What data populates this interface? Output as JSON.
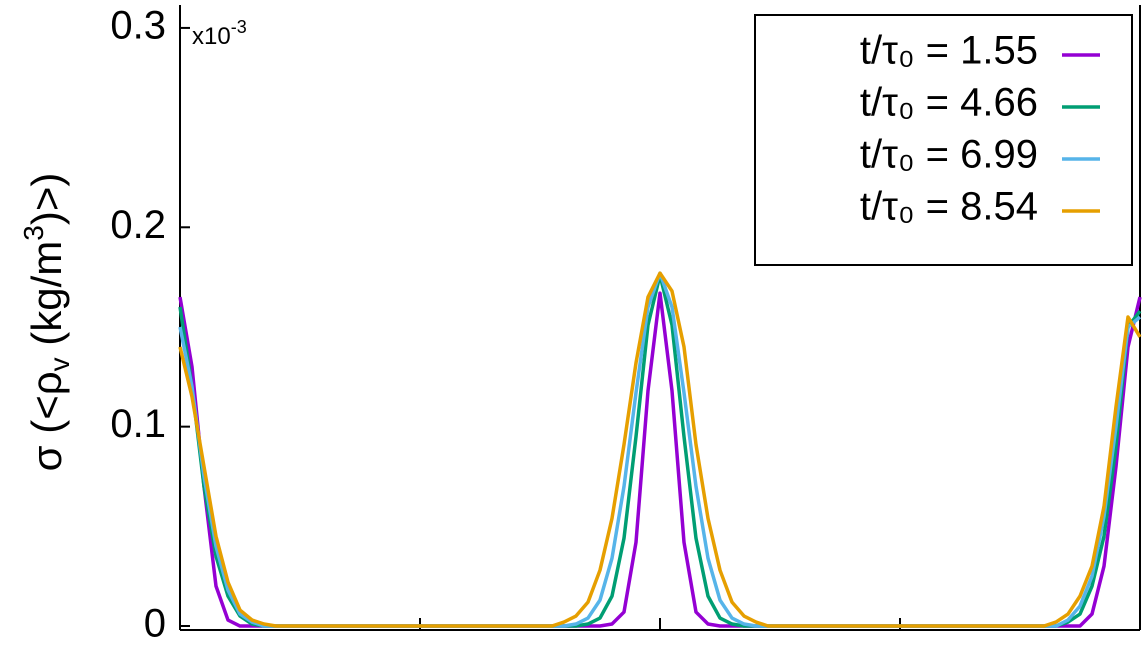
{
  "chart_data": {
    "type": "line",
    "ylabel": [
      "σ (<ρ",
      "v",
      " (kg/m",
      "3",
      ")>)"
    ],
    "multiplier": [
      "x10",
      "-3"
    ],
    "x": [
      0,
      0.05,
      0.1,
      0.15,
      0.2,
      0.25,
      0.3,
      0.35,
      0.4,
      0.45,
      0.5,
      0.55,
      0.6,
      0.65,
      0.7,
      0.75,
      0.8,
      0.85,
      0.9,
      0.95,
      1,
      1.05,
      1.1,
      1.15,
      1.2,
      1.25,
      1.3,
      1.35,
      1.4,
      1.45,
      1.5,
      1.55,
      1.6,
      1.65,
      1.7,
      1.75,
      1.8,
      1.85,
      1.9,
      1.95,
      2,
      2.05,
      2.1,
      2.15,
      2.2,
      2.25,
      2.3,
      2.35,
      2.4,
      2.45,
      2.5,
      2.55,
      2.6,
      2.65,
      2.7,
      2.75,
      2.8,
      2.85,
      2.9,
      2.95,
      3,
      3.05,
      3.1,
      3.15,
      3.2,
      3.25,
      3.3,
      3.35,
      3.4,
      3.45,
      3.5,
      3.55,
      3.6,
      3.65,
      3.7,
      3.75,
      3.8,
      3.85,
      3.9,
      3.95,
      4
    ],
    "series": [
      {
        "name": "t/τ₀ = 1.55",
        "color": "#9400d3",
        "values": [
          0.165,
          0.13,
          0.07,
          0.02,
          0.003,
          0,
          0,
          0,
          0,
          0,
          0,
          0,
          0,
          0,
          0,
          0,
          0,
          0,
          0,
          0,
          0,
          0,
          0,
          0,
          0,
          0,
          0,
          0,
          0,
          0,
          0,
          0,
          0,
          0,
          0,
          0,
          0.001,
          0.007,
          0.042,
          0.118,
          0.167,
          0.118,
          0.042,
          0.007,
          0.001,
          0,
          0,
          0,
          0,
          0,
          0,
          0,
          0,
          0,
          0,
          0,
          0,
          0,
          0,
          0,
          0,
          0,
          0,
          0,
          0,
          0,
          0,
          0,
          0,
          0,
          0,
          0,
          0,
          0,
          0,
          0,
          0.006,
          0.03,
          0.08,
          0.14,
          0.165
        ]
      },
      {
        "name": "t/τ₀ = 4.66",
        "color": "#009e73",
        "values": [
          0.16,
          0.12,
          0.07,
          0.035,
          0.015,
          0.005,
          0.001,
          0,
          0,
          0,
          0,
          0,
          0,
          0,
          0,
          0,
          0,
          0,
          0,
          0,
          0,
          0,
          0,
          0,
          0,
          0,
          0,
          0,
          0,
          0,
          0,
          0,
          0,
          0,
          0.001,
          0.004,
          0.015,
          0.044,
          0.095,
          0.151,
          0.176,
          0.151,
          0.095,
          0.044,
          0.015,
          0.004,
          0.001,
          0,
          0,
          0,
          0,
          0,
          0,
          0,
          0,
          0,
          0,
          0,
          0,
          0,
          0,
          0,
          0,
          0,
          0,
          0,
          0,
          0,
          0,
          0,
          0,
          0,
          0,
          0,
          0.002,
          0.006,
          0.02,
          0.045,
          0.09,
          0.15,
          0.158
        ]
      },
      {
        "name": "t/τ₀ = 6.99",
        "color": "#56b4e9",
        "values": [
          0.15,
          0.12,
          0.075,
          0.04,
          0.018,
          0.006,
          0.002,
          0,
          0,
          0,
          0,
          0,
          0,
          0,
          0,
          0,
          0,
          0,
          0,
          0,
          0,
          0,
          0,
          0,
          0,
          0,
          0,
          0,
          0,
          0,
          0,
          0,
          0,
          0.001,
          0.004,
          0.013,
          0.034,
          0.07,
          0.117,
          0.16,
          0.177,
          0.16,
          0.117,
          0.07,
          0.034,
          0.013,
          0.004,
          0.001,
          0,
          0,
          0,
          0,
          0,
          0,
          0,
          0,
          0,
          0,
          0,
          0,
          0,
          0,
          0,
          0,
          0,
          0,
          0,
          0,
          0,
          0,
          0,
          0,
          0,
          0,
          0.003,
          0.01,
          0.025,
          0.055,
          0.1,
          0.15,
          0.155
        ]
      },
      {
        "name": "t/τ₀ = 8.54",
        "color": "#e69f00",
        "values": [
          0.14,
          0.115,
          0.08,
          0.045,
          0.022,
          0.008,
          0.003,
          0.001,
          0,
          0,
          0,
          0,
          0,
          0,
          0,
          0,
          0,
          0,
          0,
          0,
          0,
          0,
          0,
          0,
          0,
          0,
          0,
          0,
          0,
          0,
          0,
          0,
          0.002,
          0.005,
          0.012,
          0.028,
          0.054,
          0.091,
          0.132,
          0.165,
          0.177,
          0.168,
          0.14,
          0.091,
          0.054,
          0.028,
          0.012,
          0.005,
          0.002,
          0,
          0,
          0,
          0,
          0,
          0,
          0,
          0,
          0,
          0,
          0,
          0,
          0,
          0,
          0,
          0,
          0,
          0,
          0,
          0,
          0,
          0,
          0,
          0,
          0.002,
          0.006,
          0.015,
          0.03,
          0.06,
          0.11,
          0.155,
          0.145
        ]
      }
    ],
    "xlim": [
      0,
      4
    ],
    "xticks": [
      0,
      1,
      2,
      3,
      4
    ],
    "ylim": [
      -0.002,
      0.3115
    ],
    "yticks": [
      0,
      0.1,
      0.2,
      0.3
    ],
    "legend": "upper right",
    "grid": false
  }
}
